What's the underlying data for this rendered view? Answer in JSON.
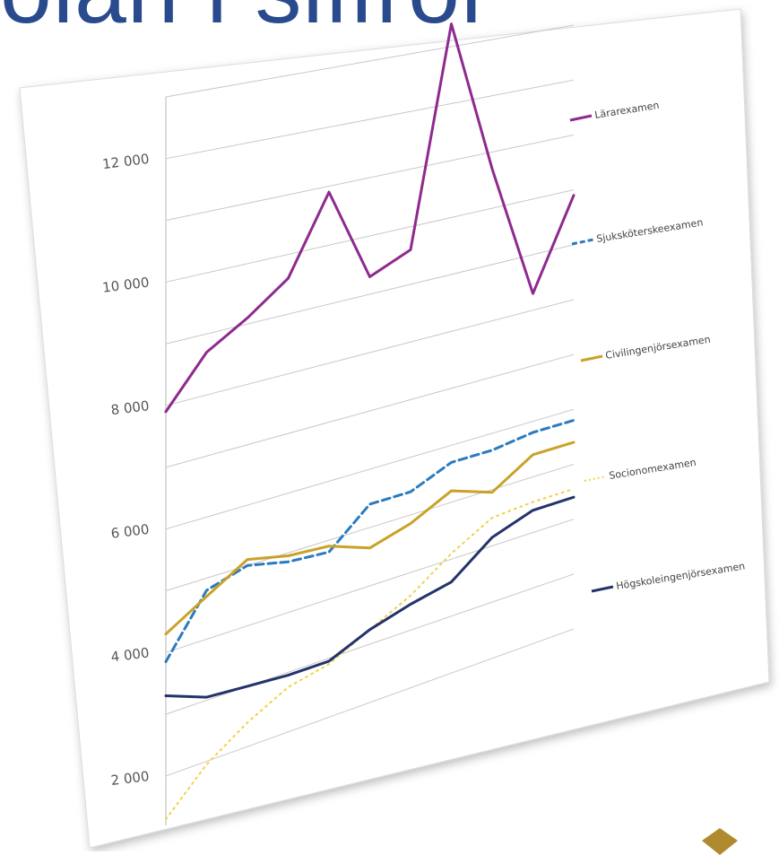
{
  "slide": {
    "title_fragment": "olan i siffror",
    "accent_color": "#2a4a8e",
    "corner_icon": "gold-diamond-icon"
  },
  "chart_data": {
    "type": "line",
    "title": "",
    "xlabel": "",
    "ylabel": "",
    "ylim": [
      1200,
      13000
    ],
    "yticks": [
      {
        "value": 2000,
        "label": "2 000"
      },
      {
        "value": 4000,
        "label": "4 000"
      },
      {
        "value": 6000,
        "label": "6 000"
      },
      {
        "value": 8000,
        "label": "8 000"
      },
      {
        "value": 10000,
        "label": "10 000"
      },
      {
        "value": 12000,
        "label": "12 000"
      }
    ],
    "grid": true,
    "legend": "right",
    "x_points": 11,
    "series": [
      {
        "name": "Lärarexamen",
        "color": "#8e2a8e",
        "dash": "solid",
        "values": [
          7900,
          8700,
          9100,
          9600,
          10900,
          9300,
          9600,
          13400,
          10700,
          8300,
          9900
        ]
      },
      {
        "name": "Sjuksköterskeexamen",
        "color": "#2b7bbf",
        "dash": "dashed",
        "values": [
          3850,
          4800,
          5000,
          4850,
          4800,
          5400,
          5400,
          5700,
          5700,
          5800,
          5800
        ]
      },
      {
        "name": "Civilingenjörsexamen",
        "color": "#c9a227",
        "dash": "solid",
        "values": [
          4300,
          4700,
          5100,
          4950,
          4900,
          4650,
          4850,
          5200,
          4950,
          5400,
          5400
        ]
      },
      {
        "name": "Socionomexamen",
        "color": "#f0d24a",
        "dash": "dotted",
        "values": [
          1300,
          1950,
          2400,
          2750,
          2900,
          3250,
          3600,
          4100,
          4500,
          4550,
          4550
        ]
      },
      {
        "name": "Högskoleingenjörsexamen",
        "color": "#23336b",
        "dash": "solid",
        "values": [
          3300,
          3050,
          3000,
          2950,
          2950,
          3250,
          3450,
          3600,
          4150,
          4400,
          4400
        ]
      }
    ]
  }
}
